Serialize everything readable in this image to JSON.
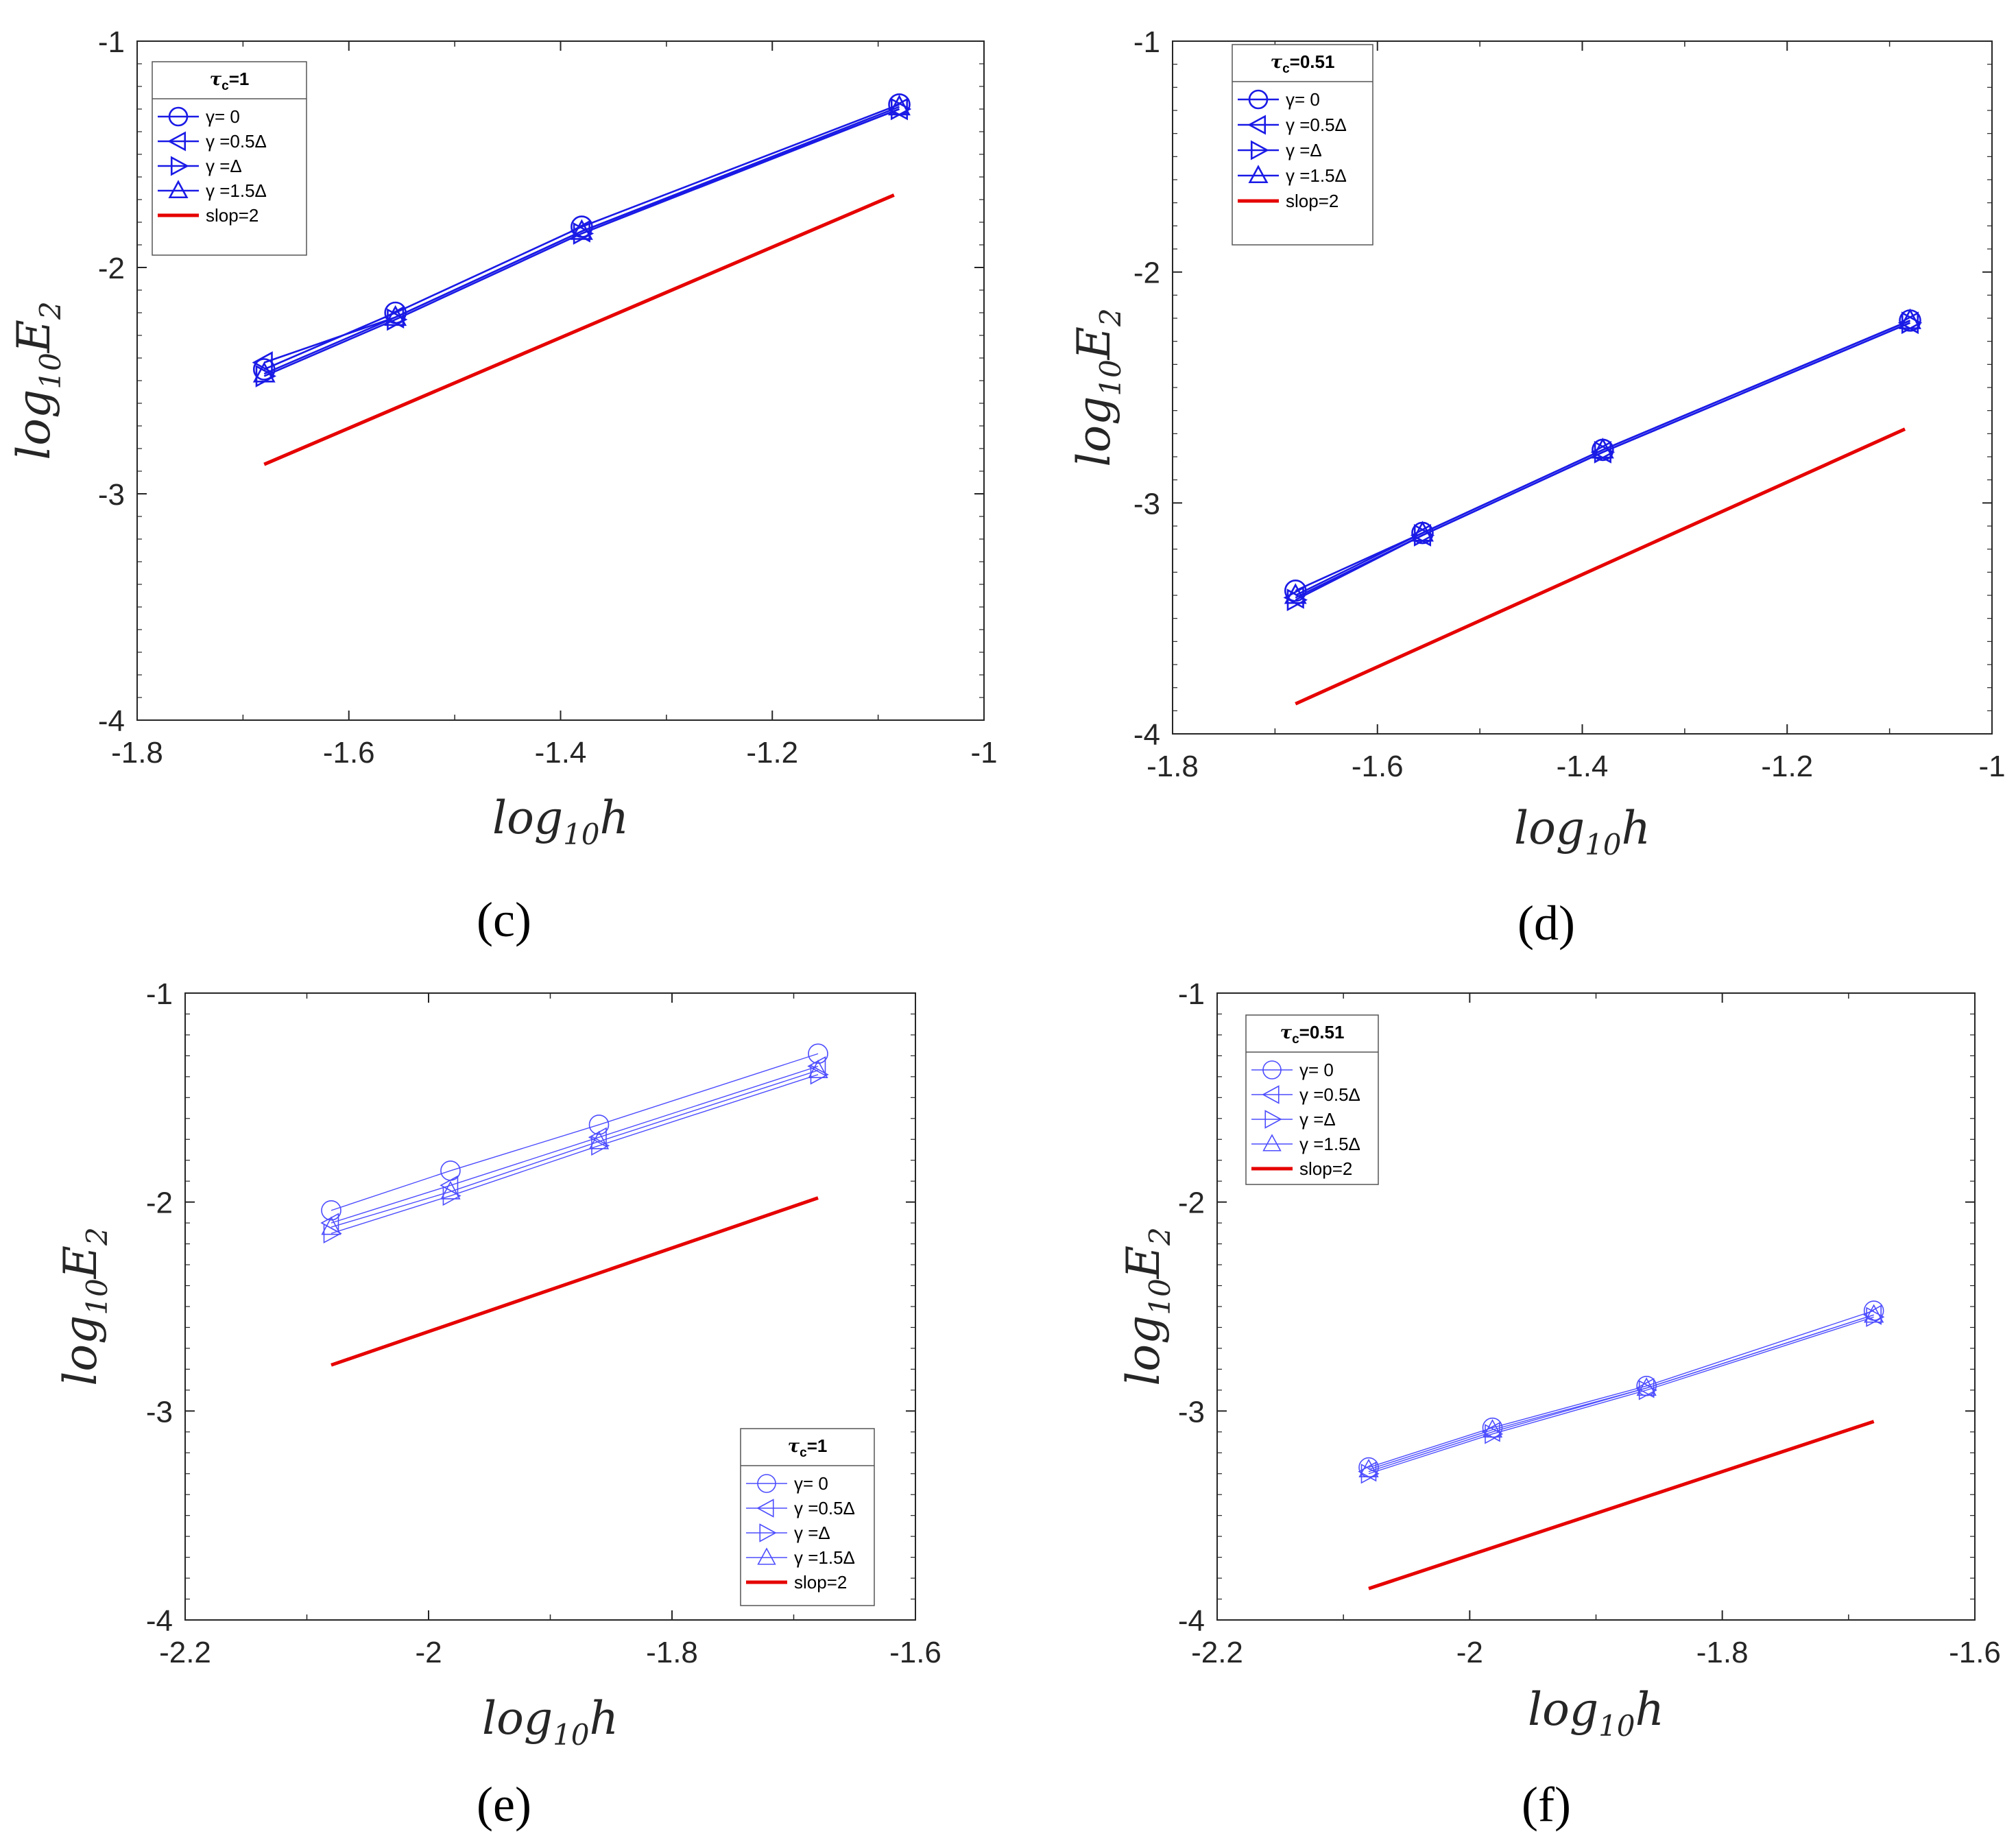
{
  "colors": {
    "series": "#1a1ae6",
    "series_light": "#4d4dff",
    "reference": "#e60000",
    "axis": "#262626"
  },
  "chart_data": [
    {
      "type": "line",
      "panel": "(c)",
      "title": "",
      "xlabel_base": "log",
      "xlabel_sub": "10",
      "xlabel_var": "h",
      "ylabel_base": "log",
      "ylabel_sub": "10",
      "ylabel_var": "E",
      "ylabel_var_sub": "2",
      "xlim": [
        -1.8,
        -1.0
      ],
      "ylim": [
        -4,
        -1
      ],
      "xticks": [
        -1.8,
        -1.6,
        -1.4,
        -1.2,
        -1
      ],
      "xtick_labels": [
        "-1.8",
        "-1.6",
        "-1.4",
        "-1.2",
        "-1"
      ],
      "yticks": [
        -4,
        -3,
        -2,
        -1
      ],
      "ytick_labels": [
        "-4",
        "-3",
        "-2",
        "-1"
      ],
      "legend_position": "top-left",
      "legend_title_base": "τ",
      "legend_title_sub": "c",
      "legend_title_value": "=1",
      "line_weight": "bold",
      "x": [
        -1.68,
        -1.556,
        -1.38,
        -1.08
      ],
      "series": [
        {
          "name": "γ= 0",
          "marker": "circle",
          "values": [
            -2.45,
            -2.2,
            -1.82,
            -1.28
          ]
        },
        {
          "name": "γ =0.5Δ",
          "marker": "triangle-left",
          "values": [
            -2.42,
            -2.22,
            -1.84,
            -1.3
          ]
        },
        {
          "name": "γ =Δ",
          "marker": "triangle-right",
          "values": [
            -2.48,
            -2.23,
            -1.85,
            -1.3
          ]
        },
        {
          "name": "γ =1.5Δ",
          "marker": "triangle-up",
          "values": [
            -2.47,
            -2.22,
            -1.84,
            -1.29
          ]
        },
        {
          "name": "slop=2",
          "marker": "none",
          "reference": true,
          "x": [
            -1.68,
            -1.085
          ],
          "values": [
            -2.87,
            -1.68
          ]
        }
      ]
    },
    {
      "type": "line",
      "panel": "(d)",
      "title": "",
      "xlabel_base": "log",
      "xlabel_sub": "10",
      "xlabel_var": "h",
      "ylabel_base": "log",
      "ylabel_sub": "10",
      "ylabel_var": "E",
      "ylabel_var_sub": "2",
      "xlim": [
        -1.8,
        -1.0
      ],
      "ylim": [
        -4,
        -1
      ],
      "xticks": [
        -1.8,
        -1.6,
        -1.4,
        -1.2,
        -1
      ],
      "xtick_labels": [
        "-1.8",
        "-1.6",
        "-1.4",
        "-1.2",
        "-1"
      ],
      "yticks": [
        -4,
        -3,
        -2,
        -1
      ],
      "ytick_labels": [
        "-4",
        "-3",
        "-2",
        "-1"
      ],
      "legend_position": "top-left",
      "legend_title_base": "τ",
      "legend_title_sub": "c",
      "legend_title_value": "=0.51",
      "line_weight": "bold",
      "x": [
        -1.68,
        -1.556,
        -1.38,
        -1.08
      ],
      "series": [
        {
          "name": "γ= 0",
          "marker": "circle",
          "values": [
            -3.38,
            -3.13,
            -2.77,
            -2.21
          ]
        },
        {
          "name": "γ =0.5Δ",
          "marker": "triangle-left",
          "values": [
            -3.41,
            -3.14,
            -2.78,
            -2.22
          ]
        },
        {
          "name": "γ =Δ",
          "marker": "triangle-right",
          "values": [
            -3.42,
            -3.14,
            -2.78,
            -2.22
          ]
        },
        {
          "name": "γ =1.5Δ",
          "marker": "triangle-up",
          "values": [
            -3.4,
            -3.13,
            -2.77,
            -2.21
          ]
        },
        {
          "name": "slop=2",
          "marker": "none",
          "reference": true,
          "x": [
            -1.68,
            -1.085
          ],
          "values": [
            -3.87,
            -2.68
          ]
        }
      ]
    },
    {
      "type": "line",
      "panel": "(e)",
      "title": "",
      "xlabel_base": "log",
      "xlabel_sub": "10",
      "xlabel_var": "h",
      "ylabel_base": "log",
      "ylabel_sub": "10",
      "ylabel_var": "E",
      "ylabel_var_sub": "2",
      "xlim": [
        -2.2,
        -1.6
      ],
      "ylim": [
        -4,
        -1
      ],
      "xticks": [
        -2.2,
        -2.0,
        -1.8,
        -1.6
      ],
      "xtick_labels": [
        "-2.2",
        "-2",
        "-1.8",
        "-1.6"
      ],
      "yticks": [
        -4,
        -3,
        -2,
        -1
      ],
      "ytick_labels": [
        "-4",
        "-3",
        "-2",
        "-1"
      ],
      "legend_position": "bottom-right",
      "legend_title_base": "τ",
      "legend_title_sub": "c",
      "legend_title_value": "=1",
      "line_weight": "thin",
      "x": [
        -2.08,
        -1.982,
        -1.86,
        -1.68
      ],
      "series": [
        {
          "name": "γ= 0",
          "marker": "circle",
          "values": [
            -2.04,
            -1.85,
            -1.63,
            -1.29
          ]
        },
        {
          "name": "γ =0.5Δ",
          "marker": "triangle-left",
          "values": [
            -2.1,
            -1.92,
            -1.69,
            -1.35
          ]
        },
        {
          "name": "γ =Δ",
          "marker": "triangle-right",
          "values": [
            -2.15,
            -1.97,
            -1.73,
            -1.39
          ]
        },
        {
          "name": "γ =1.5Δ",
          "marker": "triangle-up",
          "values": [
            -2.12,
            -1.95,
            -1.71,
            -1.37
          ]
        },
        {
          "name": "slop=2",
          "marker": "none",
          "reference": true,
          "x": [
            -2.08,
            -1.68
          ],
          "values": [
            -2.78,
            -1.98
          ]
        }
      ]
    },
    {
      "type": "line",
      "panel": "(f)",
      "title": "",
      "xlabel_base": "log",
      "xlabel_sub": "10",
      "xlabel_var": "h",
      "ylabel_base": "log",
      "ylabel_sub": "10",
      "ylabel_var": "E",
      "ylabel_var_sub": "2",
      "xlim": [
        -2.2,
        -1.6
      ],
      "ylim": [
        -4,
        -1
      ],
      "xticks": [
        -2.2,
        -2.0,
        -1.8,
        -1.6
      ],
      "xtick_labels": [
        "-2.2",
        "-2",
        "-1.8",
        "-1.6"
      ],
      "yticks": [
        -4,
        -3,
        -2,
        -1
      ],
      "ytick_labels": [
        "-4",
        "-3",
        "-2",
        "-1"
      ],
      "legend_position": "top-left",
      "legend_title_base": "τ",
      "legend_title_sub": "c",
      "legend_title_value": "=0.51",
      "line_weight": "thin",
      "x": [
        -2.08,
        -1.982,
        -1.86,
        -1.68
      ],
      "series": [
        {
          "name": "γ= 0",
          "marker": "circle",
          "values": [
            -3.27,
            -3.08,
            -2.88,
            -2.52
          ]
        },
        {
          "name": "γ =0.5Δ",
          "marker": "triangle-left",
          "values": [
            -3.29,
            -3.1,
            -2.89,
            -2.54
          ]
        },
        {
          "name": "γ =Δ",
          "marker": "triangle-right",
          "values": [
            -3.3,
            -3.11,
            -2.9,
            -2.55
          ]
        },
        {
          "name": "γ =1.5Δ",
          "marker": "triangle-up",
          "values": [
            -3.28,
            -3.09,
            -2.89,
            -2.54
          ]
        },
        {
          "name": "slop=2",
          "marker": "none",
          "reference": true,
          "x": [
            -2.08,
            -1.68
          ],
          "values": [
            -3.85,
            -3.05
          ]
        }
      ]
    }
  ]
}
